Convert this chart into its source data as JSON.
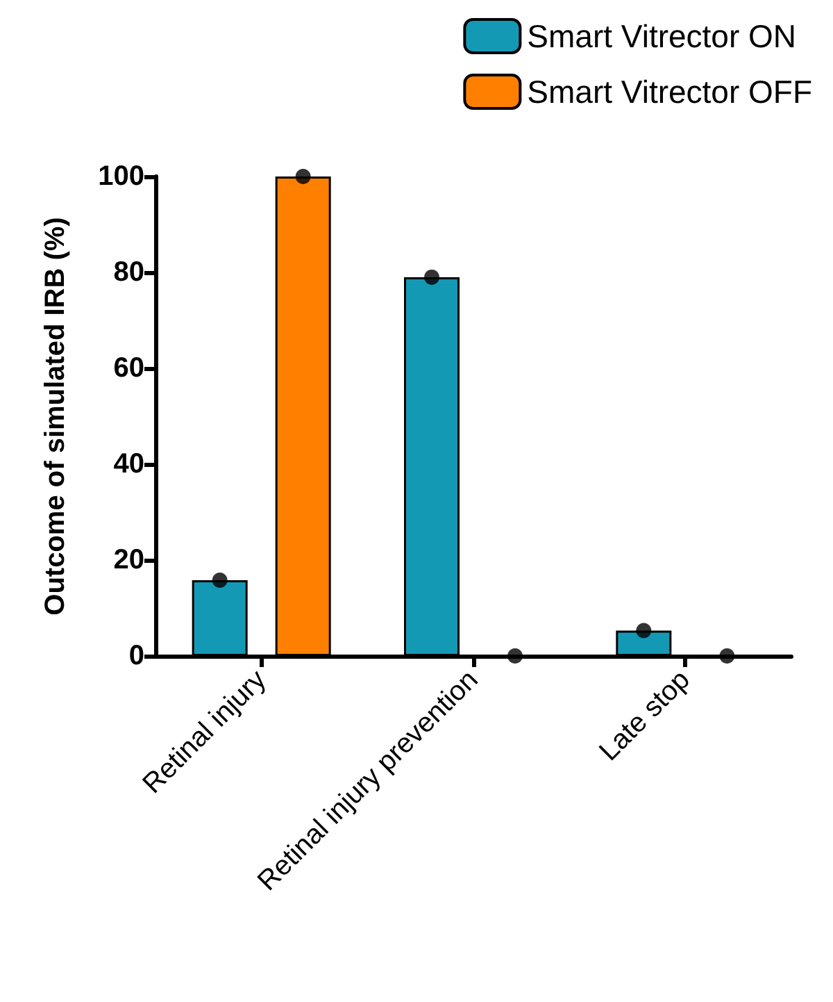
{
  "chart_data": {
    "type": "bar",
    "ylabel": "Outcome of simulated IRB (%)",
    "categories": [
      "Retinal injury",
      "Retinal injury prevention",
      "Late stop"
    ],
    "series": [
      {
        "name": "Smart Vitrector ON",
        "color": "#1499b5",
        "values": [
          15.8,
          79,
          5.3
        ]
      },
      {
        "name": "Smart Vitrector OFF",
        "color": "#ff8000",
        "values": [
          100,
          0,
          0
        ]
      },
      {
        "type": "scatter",
        "color": "#000000",
        "x": [
          "Retinal injury",
          "Retinal injury prevention",
          "Late stop"
        ],
        "values": [
          15.8,
          79,
          5.3
        ]
      },
      {
        "type": "scatter",
        "color": "#000000",
        "x": [
          "Retinal injury",
          "Retinal injury prevention",
          "Late stop"
        ],
        "values": [
          100,
          0,
          0
        ]
      }
    ],
    "ylim": [
      0,
      100
    ],
    "yticks": [
      0,
      20,
      40,
      60,
      80,
      100
    ],
    "grid": false,
    "legend": "top right",
    "marker": "circle"
  }
}
